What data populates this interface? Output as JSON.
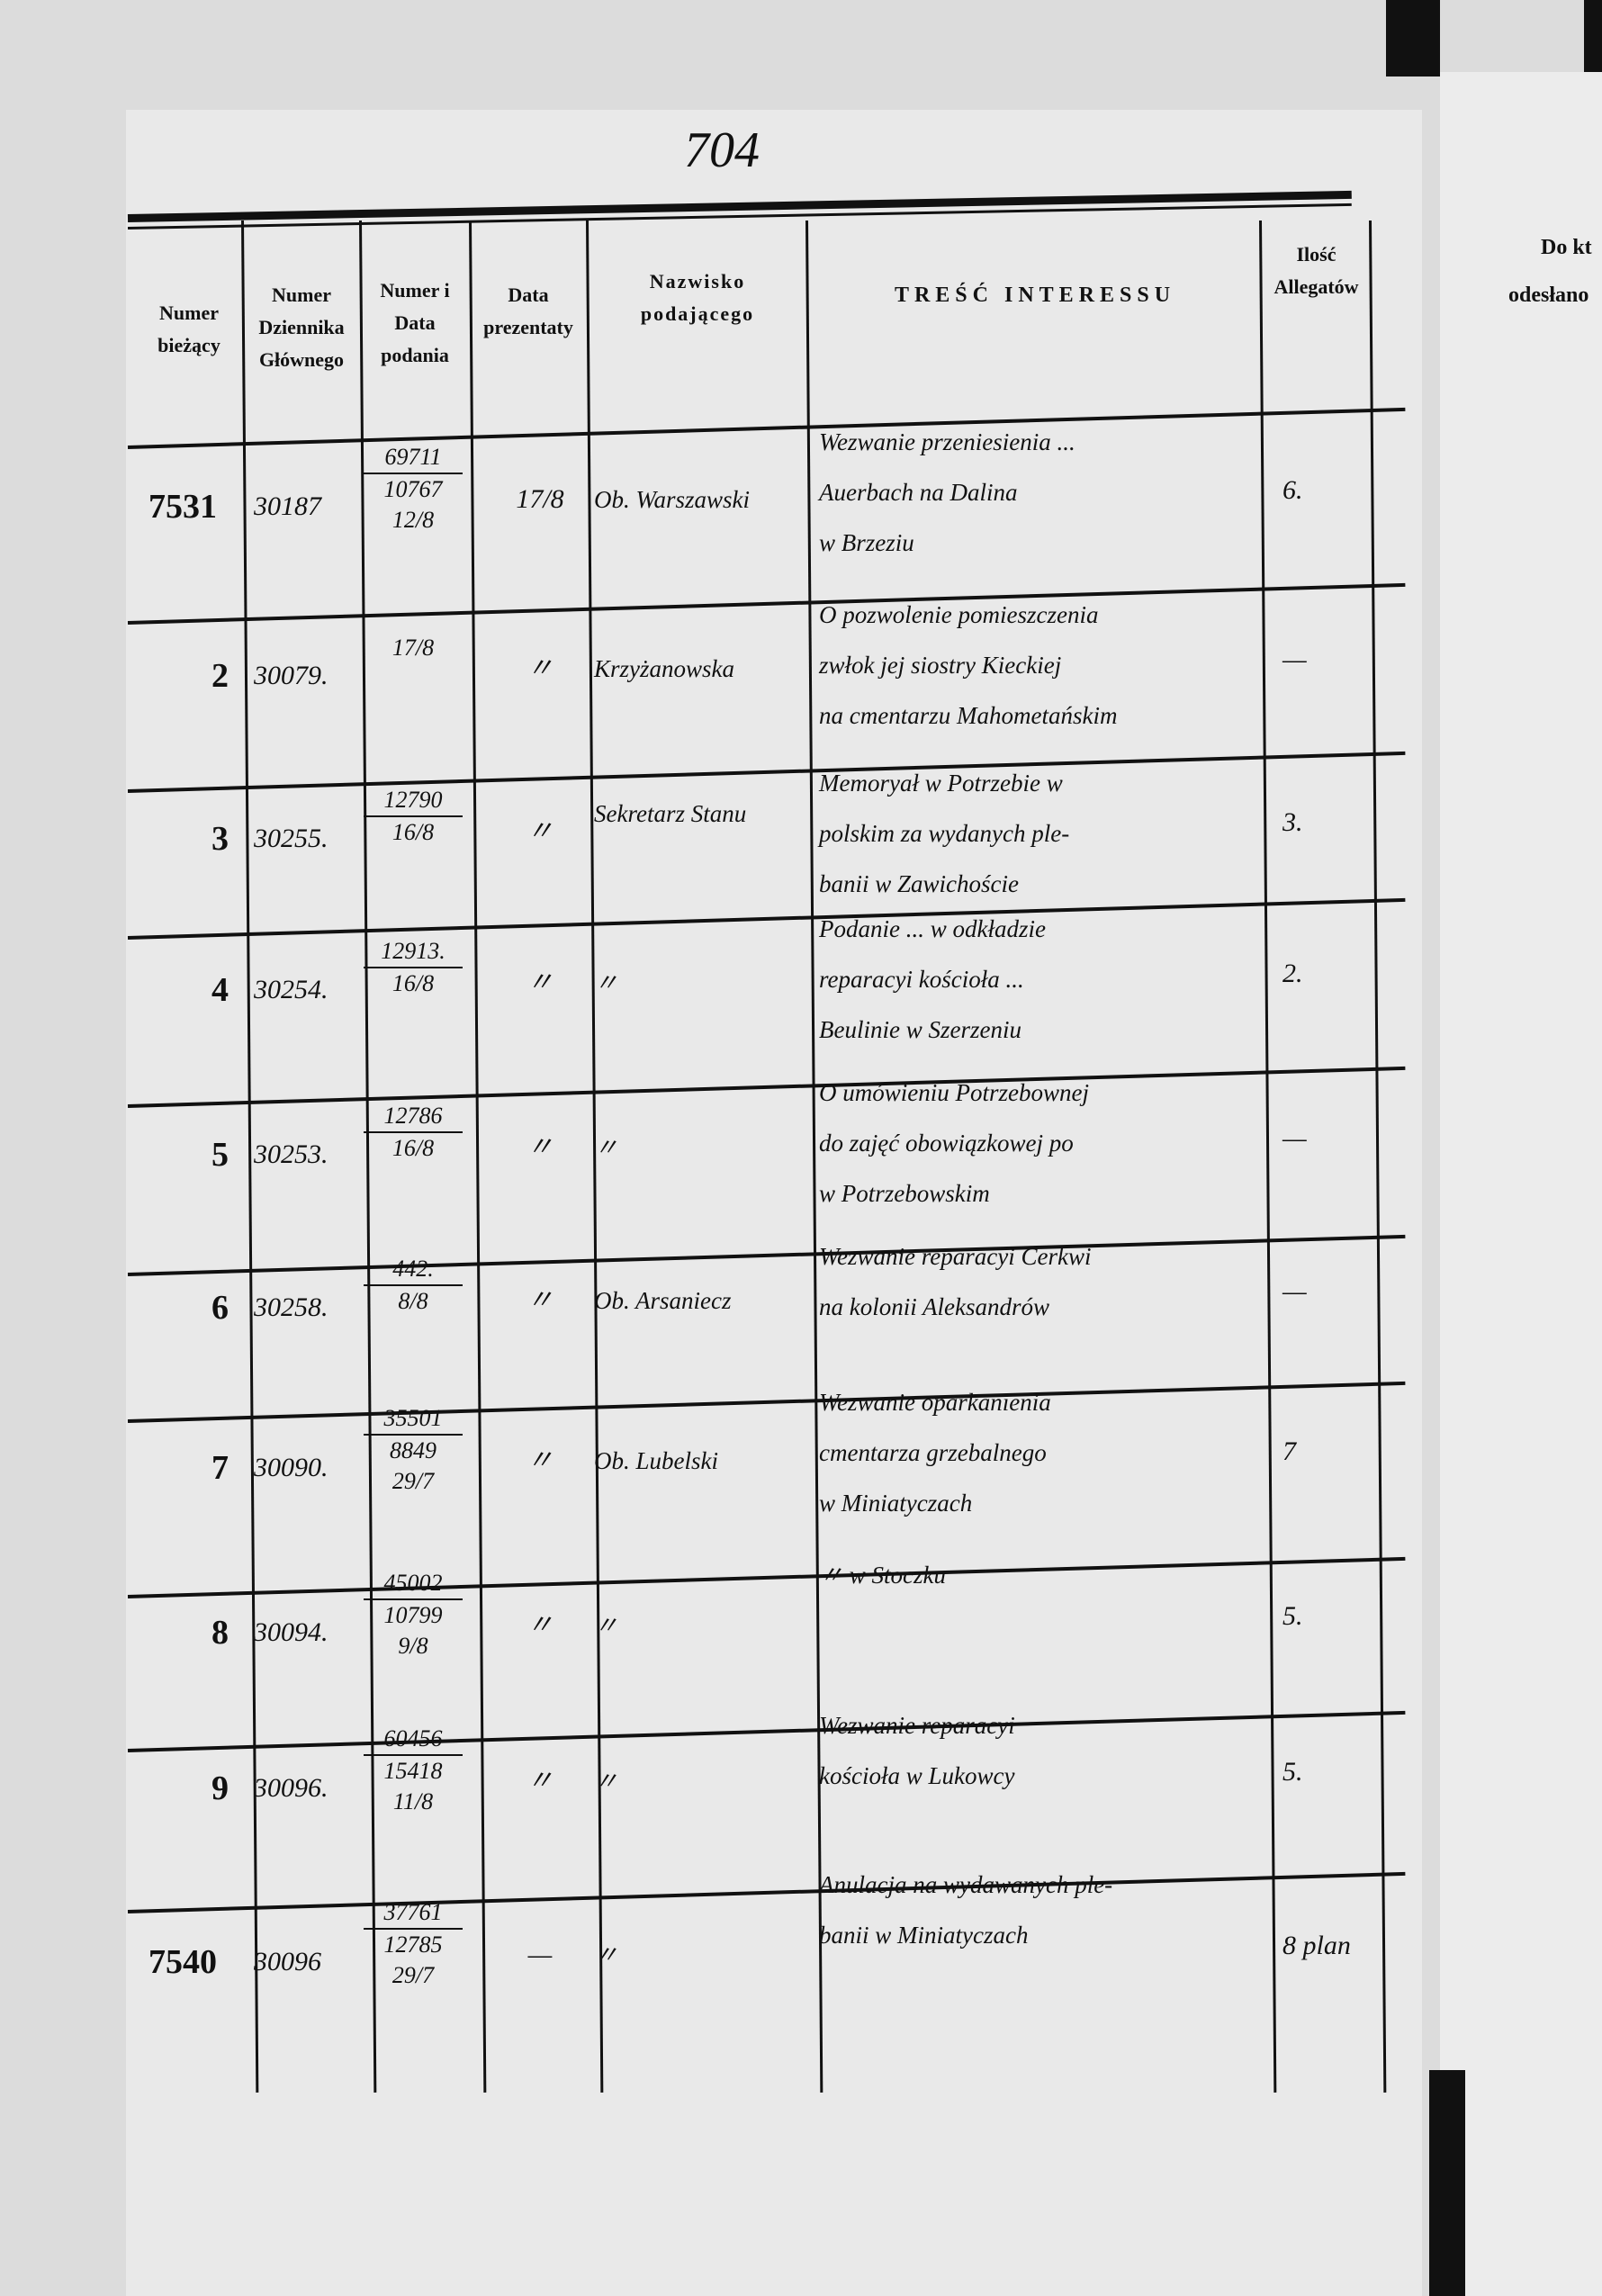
{
  "page_number": "704",
  "headers": {
    "col_number": "Numer bieżący",
    "col_journal": "Numer Dziennika Głównego",
    "col_submission": "Numer i Data podania",
    "col_presentation": "Data prezentaty",
    "col_name": "Nazwisko podającego",
    "col_content": "TREŚĆ INTERESSU",
    "col_attachments": "Ilość Allegatów"
  },
  "right_page": {
    "header_line1": "Do kt",
    "header_line2": "odesłano"
  },
  "rows": [
    {
      "number": "7531",
      "journal": "30187",
      "submission": [
        "69711",
        "10767",
        "12/8"
      ],
      "presentation": "17/8",
      "name": "Ob. Warszawski",
      "content": [
        "Wezwanie przeniesienia ...",
        "Auerbach na Dalina",
        "w Brzeziu"
      ],
      "attachments": "6."
    },
    {
      "number": "2",
      "journal": "30079.",
      "submission": [
        "17/8"
      ],
      "presentation": "〃",
      "name": "Krzyżanowska",
      "content": [
        "O pozwolenie pomieszczenia",
        "zwłok jej siostry Kieckiej",
        "na cmentarzu Mahometańskim"
      ],
      "attachments": "—"
    },
    {
      "number": "3",
      "journal": "30255.",
      "submission": [
        "12790",
        "16/8"
      ],
      "presentation": "〃",
      "name": "Sekretarz Stanu",
      "content": [
        "Memoryał w Potrzebie w",
        "polskim za wydanych ple-",
        "banii w Zawichoście"
      ],
      "attachments": "3."
    },
    {
      "number": "4",
      "journal": "30254.",
      "submission": [
        "12913.",
        "16/8"
      ],
      "presentation": "〃",
      "name": "〃",
      "content": [
        "Podanie ... w odkładzie",
        "reparacyi kościoła ...",
        "Beulinie w Szerzeniu"
      ],
      "attachments": "2."
    },
    {
      "number": "5",
      "journal": "30253.",
      "submission": [
        "12786",
        "16/8"
      ],
      "presentation": "〃",
      "name": "〃",
      "content": [
        "O umówieniu Potrzebownej",
        "do zajęć obowiązkowej po",
        "w Potrzebowskim"
      ],
      "attachments": "—"
    },
    {
      "number": "6",
      "journal": "30258.",
      "submission": [
        "442.",
        "8/8"
      ],
      "presentation": "〃",
      "name": "Ob. Arsaniecz",
      "content": [
        "Wezwanie reparacyi Cerkwi",
        "na kolonii Aleksandrów"
      ],
      "attachments": "—"
    },
    {
      "number": "7",
      "journal": "30090.",
      "submission": [
        "35501",
        "8849",
        "29/7"
      ],
      "presentation": "〃",
      "name": "Ob. Lubelski",
      "content": [
        "Wezwanie oparkanienia",
        "cmentarza grzebalnego",
        "w Miniatyczach"
      ],
      "attachments": "7"
    },
    {
      "number": "8",
      "journal": "30094.",
      "submission": [
        "45002",
        "10799",
        "9/8"
      ],
      "presentation": "〃",
      "name": "〃",
      "content": [
        "〃 w Stoczku"
      ],
      "attachments": "5."
    },
    {
      "number": "9",
      "journal": "30096.",
      "submission": [
        "60456",
        "15418",
        "11/8"
      ],
      "presentation": "〃",
      "name": "〃",
      "content": [
        "Wezwanie reparacyi",
        "kościoła w Lukowcy"
      ],
      "attachments": "5."
    },
    {
      "number": "7540",
      "journal": "30096",
      "submission": [
        "37761",
        "12785",
        "29/7"
      ],
      "presentation": "—",
      "name": "〃",
      "content": [
        "Anulacja na wydawanych ple-",
        "banii w Miniatyczach"
      ],
      "attachments": "8 plan"
    }
  ]
}
